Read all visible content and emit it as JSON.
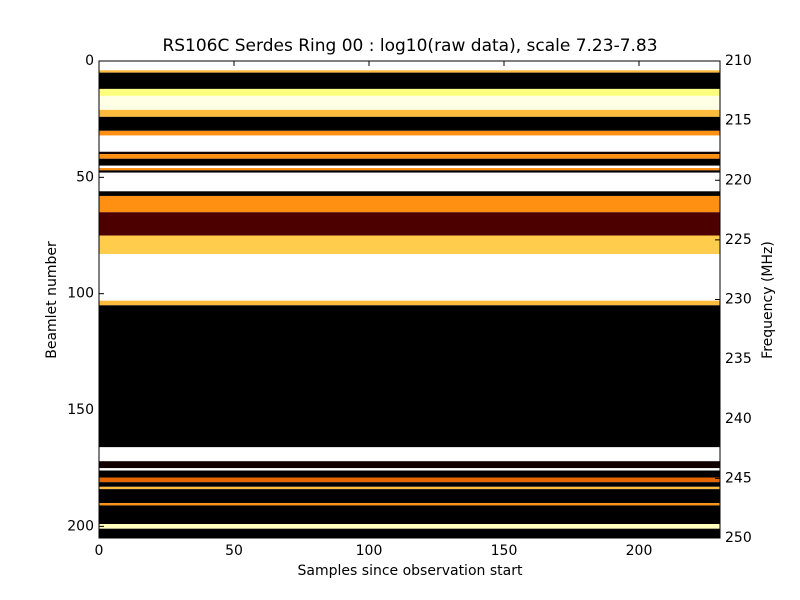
{
  "chart_data": {
    "type": "heatmap",
    "title": "RS106C Serdes Ring 00 : log10(raw data), scale 7.23-7.83",
    "xlabel": "Samples since observation start",
    "ylabel": "Beamlet number",
    "y2label": "Frequency (MHz)",
    "colormap": "afmhot",
    "clim": [
      7.23,
      7.83
    ],
    "xlim": [
      0,
      230
    ],
    "xticks": [
      0,
      50,
      100,
      150,
      200
    ],
    "ylim": [
      205,
      0
    ],
    "yticks": [
      0,
      50,
      100,
      150,
      200
    ],
    "y2lim": [
      250,
      210
    ],
    "y2ticks": [
      210,
      215,
      220,
      225,
      230,
      235,
      240,
      245,
      250
    ],
    "y_edges": [
      0,
      4,
      5,
      12,
      15,
      21,
      24,
      30,
      32,
      39,
      40,
      42,
      45,
      46,
      47,
      48,
      56,
      58,
      65,
      75,
      83,
      103,
      105,
      166,
      172,
      175,
      176,
      179,
      181,
      183,
      184,
      190,
      191,
      199,
      201,
      205
    ],
    "values": [
      7.83,
      7.6,
      7.2,
      7.68,
      7.8,
      7.6,
      7.2,
      7.55,
      7.9,
      7.25,
      7.55,
      7.2,
      7.85,
      7.55,
      7.2,
      7.9,
      7.2,
      7.55,
      7.32,
      7.62,
      7.9,
      7.6,
      7.2,
      7.85,
      7.25,
      7.9,
      7.2,
      7.5,
      7.2,
      7.6,
      7.2,
      7.55,
      7.2,
      7.75,
      7.2
    ]
  }
}
